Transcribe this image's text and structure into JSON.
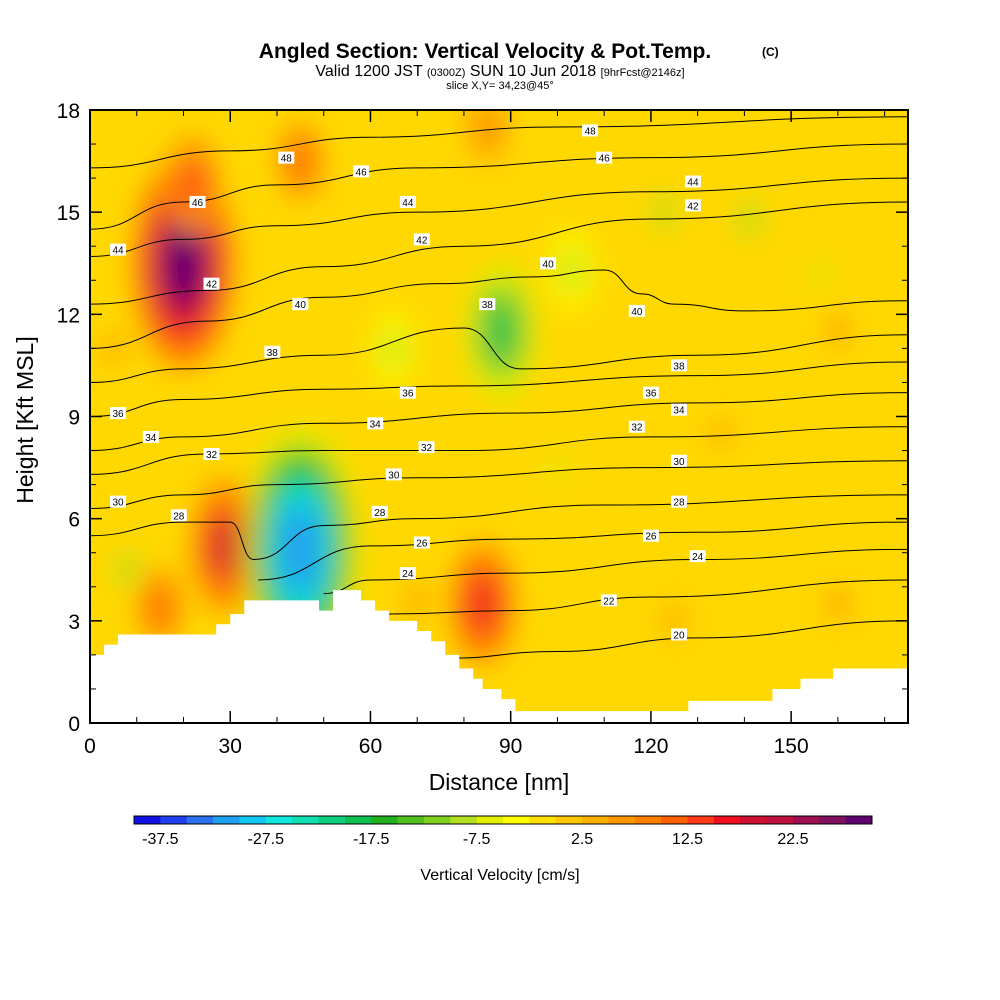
{
  "header": {
    "title": "Angled Section: Vertical Velocity & Pot.Temp.",
    "title_mark": "(C)",
    "valid_prefix": "Valid 1200 JST",
    "valid_utc": "(0300Z)",
    "valid_date": "SUN 10 Jun 2018",
    "forecast": "[9hrFcst@2146z]",
    "slice": "slice X,Y= 34,23@45°"
  },
  "chart_data": {
    "type": "heatmap",
    "xlabel": "Distance [nm]",
    "ylabel": "Height [Kft MSL]",
    "xlim": [
      0,
      175
    ],
    "ylim": [
      0,
      18
    ],
    "x_ticks": [
      0,
      30,
      60,
      90,
      120,
      150
    ],
    "y_ticks": [
      0,
      3,
      6,
      9,
      12,
      15,
      18
    ],
    "colorbar": {
      "label": "Vertical Velocity [cm/s]",
      "tick_labels": [
        "-37.5",
        "-27.5",
        "-17.5",
        "-7.5",
        "2.5",
        "12.5",
        "22.5"
      ],
      "min": -40,
      "max": 30,
      "step": 2.5,
      "colors": [
        "#1010e8",
        "#2040f0",
        "#2a70f0",
        "#20a0f0",
        "#10c8f0",
        "#10e8e0",
        "#10e0b0",
        "#10d080",
        "#10c050",
        "#20b020",
        "#50c020",
        "#80d020",
        "#b0e020",
        "#e0f000",
        "#ffff00",
        "#ffe000",
        "#ffc800",
        "#ffb000",
        "#ff9800",
        "#ff8000",
        "#ff6000",
        "#ff3818",
        "#f01020",
        "#d01030",
        "#c01040",
        "#a01050",
        "#801060",
        "#600070"
      ]
    },
    "velocity_features": [
      {
        "x": 20,
        "y": 13.5,
        "value": 28
      },
      {
        "x": 22,
        "y": 15.8,
        "value": 14
      },
      {
        "x": 45,
        "y": 16.5,
        "value": 10
      },
      {
        "x": 85,
        "y": 17.5,
        "value": 9
      },
      {
        "x": 29,
        "y": 5.2,
        "value": 18
      },
      {
        "x": 84,
        "y": 3.5,
        "value": 16
      },
      {
        "x": 45,
        "y": 5.1,
        "value": -32
      },
      {
        "x": 88,
        "y": 11.5,
        "value": -18
      },
      {
        "x": 65,
        "y": 11.0,
        "value": -9
      },
      {
        "x": 103,
        "y": 13.3,
        "value": -10
      },
      {
        "x": 123,
        "y": 15.0,
        "value": -8
      },
      {
        "x": 141,
        "y": 14.8,
        "value": -8
      },
      {
        "x": 156,
        "y": 13.2,
        "value": -6
      },
      {
        "x": 100,
        "y": 7.5,
        "value": -6
      },
      {
        "x": 8,
        "y": 4.5,
        "value": -8
      },
      {
        "x": 70,
        "y": 3.6,
        "value": 7
      },
      {
        "x": 15,
        "y": 3.4,
        "value": 10
      },
      {
        "x": 160,
        "y": 11.5,
        "value": 7
      },
      {
        "x": 160,
        "y": 3.5,
        "value": 7
      },
      {
        "x": 125,
        "y": 3.0,
        "value": 6
      },
      {
        "x": 5,
        "y": 11.0,
        "value": 6
      },
      {
        "x": 135,
        "y": 8.5,
        "value": 5
      }
    ],
    "terrain": [
      [
        0,
        2.0
      ],
      [
        3,
        2.0
      ],
      [
        3,
        2.3
      ],
      [
        6,
        2.3
      ],
      [
        6,
        2.6
      ],
      [
        9,
        2.6
      ],
      [
        9,
        2.6
      ],
      [
        27,
        2.6
      ],
      [
        27,
        2.9
      ],
      [
        30,
        2.9
      ],
      [
        30,
        3.2
      ],
      [
        33,
        3.2
      ],
      [
        33,
        3.6
      ],
      [
        36,
        3.6
      ],
      [
        36,
        3.6
      ],
      [
        49,
        3.6
      ],
      [
        49,
        3.3
      ],
      [
        52,
        3.3
      ],
      [
        52,
        3.9
      ],
      [
        58,
        3.9
      ],
      [
        58,
        3.6
      ],
      [
        61,
        3.6
      ],
      [
        61,
        3.3
      ],
      [
        64,
        3.3
      ],
      [
        64,
        3.0
      ],
      [
        70,
        3.0
      ],
      [
        70,
        2.7
      ],
      [
        73,
        2.7
      ],
      [
        73,
        2.4
      ],
      [
        76,
        2.4
      ],
      [
        76,
        2.0
      ],
      [
        79,
        2.0
      ],
      [
        79,
        1.6
      ],
      [
        82,
        1.6
      ],
      [
        82,
        1.3
      ],
      [
        84,
        1.3
      ],
      [
        84,
        1.0
      ],
      [
        88,
        1.0
      ],
      [
        88,
        0.7
      ],
      [
        91,
        0.7
      ],
      [
        91,
        0.35
      ],
      [
        110,
        0.35
      ],
      [
        110,
        0.35
      ],
      [
        128,
        0.35
      ],
      [
        128,
        0.65
      ],
      [
        136,
        0.65
      ],
      [
        136,
        0.65
      ],
      [
        146,
        0.65
      ],
      [
        146,
        1.0
      ],
      [
        152,
        1.0
      ],
      [
        152,
        1.3
      ],
      [
        159,
        1.3
      ],
      [
        159,
        1.6
      ],
      [
        175,
        1.6
      ]
    ],
    "theta_levels": [
      20,
      22,
      24,
      26,
      28,
      30,
      32,
      34,
      36,
      38,
      40,
      42,
      44,
      46,
      48
    ],
    "theta_contours": [
      {
        "level": 20,
        "points": [
          [
            76,
            1.9
          ],
          [
            100,
            2.1
          ],
          [
            130,
            2.5
          ],
          [
            175,
            3.0
          ]
        ]
      },
      {
        "level": 22,
        "points": [
          [
            64,
            3.2
          ],
          [
            90,
            3.3
          ],
          [
            120,
            3.7
          ],
          [
            175,
            4.2
          ]
        ]
      },
      {
        "level": 24,
        "points": [
          [
            50,
            3.8
          ],
          [
            60,
            4.2
          ],
          [
            90,
            4.4
          ],
          [
            130,
            4.8
          ],
          [
            175,
            5.1
          ]
        ]
      },
      {
        "level": 26,
        "points": [
          [
            36,
            4.2
          ],
          [
            60,
            5.2
          ],
          [
            90,
            5.4
          ],
          [
            130,
            5.6
          ],
          [
            175,
            5.9
          ]
        ]
      },
      {
        "level": 28,
        "points": [
          [
            0,
            5.5
          ],
          [
            20,
            5.9
          ],
          [
            30,
            5.9
          ],
          [
            35,
            4.8
          ],
          [
            50,
            5.8
          ],
          [
            70,
            6.0
          ],
          [
            110,
            6.4
          ],
          [
            175,
            6.7
          ]
        ]
      },
      {
        "level": 30,
        "points": [
          [
            0,
            6.3
          ],
          [
            20,
            6.7
          ],
          [
            40,
            7.0
          ],
          [
            70,
            7.2
          ],
          [
            120,
            7.5
          ],
          [
            175,
            7.7
          ]
        ]
      },
      {
        "level": 32,
        "points": [
          [
            0,
            7.3
          ],
          [
            25,
            7.9
          ],
          [
            50,
            8.0
          ],
          [
            80,
            8.0
          ],
          [
            120,
            8.4
          ],
          [
            175,
            8.7
          ]
        ]
      },
      {
        "level": 34,
        "points": [
          [
            0,
            8.0
          ],
          [
            20,
            8.4
          ],
          [
            50,
            8.8
          ],
          [
            90,
            9.1
          ],
          [
            130,
            9.4
          ],
          [
            175,
            9.7
          ]
        ]
      },
      {
        "level": 36,
        "points": [
          [
            0,
            9.0
          ],
          [
            20,
            9.5
          ],
          [
            50,
            9.8
          ],
          [
            80,
            9.9
          ],
          [
            130,
            10.2
          ],
          [
            175,
            10.6
          ]
        ]
      },
      {
        "level": 38,
        "points": [
          [
            0,
            10.0
          ],
          [
            20,
            10.4
          ],
          [
            50,
            10.8
          ],
          [
            80,
            11.6
          ],
          [
            92,
            10.4
          ],
          [
            130,
            10.8
          ],
          [
            175,
            11.4
          ]
        ]
      },
      {
        "level": 40,
        "points": [
          [
            0,
            11.0
          ],
          [
            25,
            11.8
          ],
          [
            50,
            12.5
          ],
          [
            75,
            12.9
          ],
          [
            95,
            13.1
          ],
          [
            110,
            13.3
          ],
          [
            118,
            12.6
          ],
          [
            125,
            12.3
          ],
          [
            140,
            12.1
          ],
          [
            175,
            12.4
          ]
        ]
      },
      {
        "level": 42,
        "points": [
          [
            0,
            12.3
          ],
          [
            25,
            12.7
          ],
          [
            50,
            13.4
          ],
          [
            80,
            14.0
          ],
          [
            120,
            14.8
          ],
          [
            175,
            15.3
          ]
        ]
      },
      {
        "level": 44,
        "points": [
          [
            0,
            13.7
          ],
          [
            20,
            14.2
          ],
          [
            40,
            14.6
          ],
          [
            70,
            15.0
          ],
          [
            120,
            15.6
          ],
          [
            175,
            16.0
          ]
        ]
      },
      {
        "level": 46,
        "points": [
          [
            0,
            14.5
          ],
          [
            20,
            15.3
          ],
          [
            40,
            15.8
          ],
          [
            70,
            16.3
          ],
          [
            120,
            16.6
          ],
          [
            175,
            17.0
          ]
        ]
      },
      {
        "level": 48,
        "points": [
          [
            0,
            16.3
          ],
          [
            30,
            16.8
          ],
          [
            60,
            17.2
          ],
          [
            100,
            17.5
          ],
          [
            175,
            17.8
          ]
        ]
      }
    ],
    "contour_labels": [
      {
        "text": "48",
        "x": 42,
        "y": 16.6
      },
      {
        "text": "48",
        "x": 107,
        "y": 17.4
      },
      {
        "text": "46",
        "x": 23,
        "y": 15.3
      },
      {
        "text": "46",
        "x": 58,
        "y": 16.2
      },
      {
        "text": "46",
        "x": 110,
        "y": 16.6
      },
      {
        "text": "44",
        "x": 6,
        "y": 13.9
      },
      {
        "text": "44",
        "x": 68,
        "y": 15.3
      },
      {
        "text": "44",
        "x": 129,
        "y": 15.9
      },
      {
        "text": "42",
        "x": 26,
        "y": 12.9
      },
      {
        "text": "42",
        "x": 71,
        "y": 14.2
      },
      {
        "text": "42",
        "x": 129,
        "y": 15.2
      },
      {
        "text": "40",
        "x": 45,
        "y": 12.3
      },
      {
        "text": "40",
        "x": 98,
        "y": 13.5
      },
      {
        "text": "40",
        "x": 117,
        "y": 12.1
      },
      {
        "text": "38",
        "x": 39,
        "y": 10.9
      },
      {
        "text": "38",
        "x": 85,
        "y": 12.3
      },
      {
        "text": "38",
        "x": 126,
        "y": 10.5
      },
      {
        "text": "36",
        "x": 6,
        "y": 9.1
      },
      {
        "text": "36",
        "x": 68,
        "y": 9.7
      },
      {
        "text": "36",
        "x": 120,
        "y": 9.7
      },
      {
        "text": "34",
        "x": 13,
        "y": 8.4
      },
      {
        "text": "34",
        "x": 61,
        "y": 8.8
      },
      {
        "text": "34",
        "x": 126,
        "y": 9.2
      },
      {
        "text": "32",
        "x": 26,
        "y": 7.9
      },
      {
        "text": "32",
        "x": 72,
        "y": 8.1
      },
      {
        "text": "32",
        "x": 117,
        "y": 8.7
      },
      {
        "text": "30",
        "x": 6,
        "y": 6.5
      },
      {
        "text": "30",
        "x": 65,
        "y": 7.3
      },
      {
        "text": "30",
        "x": 126,
        "y": 7.7
      },
      {
        "text": "28",
        "x": 19,
        "y": 6.1
      },
      {
        "text": "28",
        "x": 62,
        "y": 6.2
      },
      {
        "text": "28",
        "x": 126,
        "y": 6.5
      },
      {
        "text": "26",
        "x": 71,
        "y": 5.3
      },
      {
        "text": "26",
        "x": 120,
        "y": 5.5
      },
      {
        "text": "24",
        "x": 68,
        "y": 4.4
      },
      {
        "text": "24",
        "x": 130,
        "y": 4.9
      },
      {
        "text": "22",
        "x": 111,
        "y": 3.6
      },
      {
        "text": "20",
        "x": 126,
        "y": 2.6
      }
    ]
  }
}
